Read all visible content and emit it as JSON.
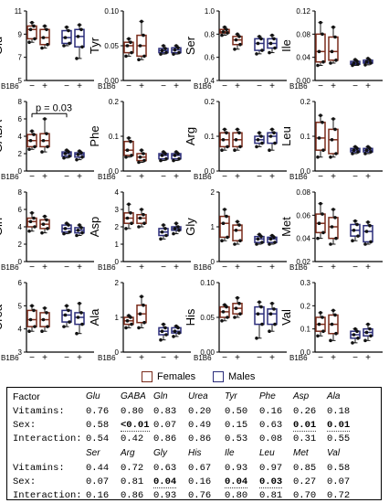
{
  "colors": {
    "females": "#7a2c1c",
    "males": "#2b2d7a",
    "points": "#111111"
  },
  "chart_data": {
    "type": "box",
    "x_row_label": "B1B6",
    "groups": [
      "−",
      "+",
      "−",
      "+"
    ],
    "group_sex": [
      "Females",
      "Females",
      "Males",
      "Males"
    ],
    "panels": [
      {
        "label": "Glu",
        "ylim": [
          5,
          11
        ],
        "ticks": [
          "5",
          "7",
          "9",
          "11"
        ],
        "boxes": [
          [
            8.3,
            8.6,
            9.4,
            9.7,
            10
          ],
          [
            7.8,
            8.1,
            8.7,
            9.4,
            9.7
          ],
          [
            8.0,
            8.2,
            8.7,
            9.3,
            9.6
          ],
          [
            6.9,
            7.9,
            8.8,
            9.4,
            9.8
          ]
        ]
      },
      {
        "label": "Tyr",
        "ylim": [
          0,
          0.1
        ],
        "ticks": [
          "0.00",
          "0.05",
          "0.10"
        ],
        "boxes": [
          [
            0.035,
            0.04,
            0.05,
            0.055,
            0.06
          ],
          [
            0.03,
            0.035,
            0.05,
            0.065,
            0.085
          ],
          [
            0.038,
            0.04,
            0.043,
            0.046,
            0.05
          ],
          [
            0.038,
            0.04,
            0.044,
            0.047,
            0.05
          ]
        ]
      },
      {
        "label": "Ser",
        "ylim": [
          0.4,
          1.0
        ],
        "ticks": [
          "0.4",
          "0.6",
          "0.8",
          "1.0"
        ],
        "boxes": [
          [
            0.79,
            0.81,
            0.82,
            0.84,
            0.86
          ],
          [
            0.67,
            0.71,
            0.75,
            0.78,
            0.8
          ],
          [
            0.63,
            0.66,
            0.72,
            0.76,
            0.78
          ],
          [
            0.64,
            0.68,
            0.72,
            0.76,
            0.79
          ]
        ]
      },
      {
        "label": "Ile",
        "ylim": [
          0,
          0.12
        ],
        "ticks": [
          "0.00",
          "0.04",
          "0.08",
          "0.12"
        ],
        "boxes": [
          [
            0.026,
            0.032,
            0.05,
            0.08,
            0.1
          ],
          [
            0.03,
            0.035,
            0.05,
            0.075,
            0.092
          ],
          [
            0.026,
            0.028,
            0.03,
            0.033,
            0.036
          ],
          [
            0.027,
            0.03,
            0.032,
            0.035,
            0.038
          ]
        ]
      },
      {
        "label": "GABA",
        "ylim": [
          0,
          8
        ],
        "ticks": [
          "0",
          "2",
          "4",
          "6",
          "8"
        ],
        "boxes": [
          [
            2.5,
            2.8,
            3.5,
            4.2,
            4.6
          ],
          [
            2.2,
            2.8,
            3.5,
            4.3,
            6.0
          ],
          [
            1.5,
            1.7,
            2.0,
            2.2,
            2.4
          ],
          [
            1.3,
            1.6,
            1.9,
            2.1,
            2.3
          ]
        ],
        "annotation": "p = 0.03"
      },
      {
        "label": "Phe",
        "ylim": [
          0,
          0.2
        ],
        "ticks": [
          "0.0",
          "0.1",
          "0.2"
        ],
        "boxes": [
          [
            0.04,
            0.045,
            0.06,
            0.085,
            0.095
          ],
          [
            0.025,
            0.03,
            0.04,
            0.05,
            0.06
          ],
          [
            0.03,
            0.035,
            0.045,
            0.05,
            0.055
          ],
          [
            0.03,
            0.035,
            0.045,
            0.05,
            0.055
          ]
        ]
      },
      {
        "label": "Arg",
        "ylim": [
          0,
          0.2
        ],
        "ticks": [
          "0.0",
          "0.1",
          "0.2"
        ],
        "boxes": [
          [
            0.06,
            0.07,
            0.09,
            0.11,
            0.12
          ],
          [
            0.06,
            0.07,
            0.09,
            0.11,
            0.12
          ],
          [
            0.07,
            0.08,
            0.09,
            0.1,
            0.11
          ],
          [
            0.06,
            0.08,
            0.1,
            0.11,
            0.12
          ]
        ]
      },
      {
        "label": "Leu",
        "ylim": [
          0,
          0.2
        ],
        "ticks": [
          "0.0",
          "0.1",
          "0.2"
        ],
        "boxes": [
          [
            0.04,
            0.06,
            0.095,
            0.14,
            0.16
          ],
          [
            0.04,
            0.05,
            0.09,
            0.12,
            0.15
          ],
          [
            0.05,
            0.055,
            0.06,
            0.065,
            0.07
          ],
          [
            0.05,
            0.055,
            0.06,
            0.065,
            0.07
          ]
        ]
      },
      {
        "label": "Gln",
        "ylim": [
          0,
          8
        ],
        "ticks": [
          "0",
          "2",
          "4",
          "6",
          "8"
        ],
        "boxes": [
          [
            3.5,
            4.0,
            4.6,
            5.0,
            5.6
          ],
          [
            3.3,
            3.8,
            4.3,
            4.8,
            5.2
          ],
          [
            3.2,
            3.4,
            3.8,
            4.2,
            4.4
          ],
          [
            3.0,
            3.3,
            3.6,
            3.9,
            4.2
          ]
        ]
      },
      {
        "label": "Asp",
        "ylim": [
          0,
          4
        ],
        "ticks": [
          "0",
          "1",
          "2",
          "3",
          "4"
        ],
        "boxes": [
          [
            1.9,
            2.2,
            2.5,
            2.8,
            3.3
          ],
          [
            2.0,
            2.2,
            2.5,
            2.7,
            3.0
          ],
          [
            1.3,
            1.5,
            1.7,
            1.9,
            2.1
          ],
          [
            1.6,
            1.8,
            1.9,
            2.0,
            2.2
          ]
        ]
      },
      {
        "label": "Gly",
        "ylim": [
          0,
          2
        ],
        "ticks": [
          "0",
          "1",
          "2"
        ],
        "boxes": [
          [
            0.6,
            0.7,
            1.1,
            1.3,
            1.5
          ],
          [
            0.5,
            0.6,
            0.9,
            1.05,
            1.15
          ],
          [
            0.5,
            0.55,
            0.65,
            0.72,
            0.78
          ],
          [
            0.5,
            0.55,
            0.65,
            0.7,
            0.75
          ]
        ]
      },
      {
        "label": "Met",
        "ylim": [
          0.02,
          0.08
        ],
        "ticks": [
          "0.02",
          "0.04",
          "0.06",
          "0.08"
        ],
        "boxes": [
          [
            0.04,
            0.045,
            0.053,
            0.061,
            0.07
          ],
          [
            0.035,
            0.04,
            0.05,
            0.058,
            0.065
          ],
          [
            0.038,
            0.042,
            0.047,
            0.052,
            0.055
          ],
          [
            0.035,
            0.037,
            0.046,
            0.051,
            0.054
          ]
        ]
      },
      {
        "label": "Urea",
        "ylim": [
          3,
          6
        ],
        "ticks": [
          "3",
          "4",
          "5",
          "6"
        ],
        "boxes": [
          [
            3.9,
            4.1,
            4.4,
            4.8,
            5.0
          ],
          [
            3.9,
            4.1,
            4.4,
            4.7,
            4.9
          ],
          [
            4.1,
            4.3,
            4.6,
            4.8,
            5.0
          ],
          [
            3.8,
            4.2,
            4.5,
            4.7,
            5.1
          ]
        ]
      },
      {
        "label": "Ala",
        "ylim": [
          0,
          2
        ],
        "ticks": [
          "0",
          "1",
          "2"
        ],
        "boxes": [
          [
            0.7,
            0.8,
            0.9,
            1.0,
            1.05
          ],
          [
            0.7,
            0.85,
            1.1,
            1.35,
            1.6
          ],
          [
            0.35,
            0.5,
            0.6,
            0.7,
            0.8
          ],
          [
            0.45,
            0.55,
            0.6,
            0.7,
            0.75
          ]
        ]
      },
      {
        "label": "His",
        "ylim": [
          0,
          0.1
        ],
        "ticks": [
          "0.00",
          "0.05",
          "0.10"
        ],
        "boxes": [
          [
            0.045,
            0.05,
            0.058,
            0.065,
            0.068
          ],
          [
            0.05,
            0.055,
            0.063,
            0.07,
            0.078
          ],
          [
            0.02,
            0.04,
            0.055,
            0.065,
            0.072
          ],
          [
            0.03,
            0.04,
            0.055,
            0.062,
            0.07
          ]
        ]
      },
      {
        "label": "Val",
        "ylim": [
          0,
          0.3
        ],
        "ticks": [
          "0.0",
          "0.1",
          "0.2",
          "0.3"
        ],
        "boxes": [
          [
            0.07,
            0.09,
            0.12,
            0.15,
            0.17
          ],
          [
            0.05,
            0.08,
            0.12,
            0.16,
            0.18
          ],
          [
            0.04,
            0.06,
            0.075,
            0.09,
            0.1
          ],
          [
            0.05,
            0.07,
            0.085,
            0.1,
            0.12
          ]
        ]
      }
    ]
  },
  "legend": {
    "females": "Females",
    "males": "Males"
  },
  "stats": {
    "factor_label": "Factor",
    "row_labels": [
      "Vitamins:",
      "Sex:",
      "Interaction:"
    ],
    "blocks": [
      {
        "headers": [
          "Glu",
          "GABA",
          "Gln",
          "Urea",
          "Tyr",
          "Phe",
          "Asp",
          "Ala"
        ],
        "rows": [
          [
            "0.76",
            "0.80",
            "0.83",
            "0.20",
            "0.50",
            "0.16",
            "0.26",
            "0.18"
          ],
          [
            "0.58",
            "<0.01",
            "0.07",
            "0.49",
            "0.15",
            "0.63",
            "0.01",
            "0.01"
          ],
          [
            "0.54",
            "0.42",
            "0.86",
            "0.86",
            "0.53",
            "0.08",
            "0.31",
            "0.55"
          ]
        ]
      },
      {
        "headers": [
          "Ser",
          "Arg",
          "Gly",
          "His",
          "Ile",
          "Leu",
          "Met",
          "Val"
        ],
        "rows": [
          [
            "0.44",
            "0.72",
            "0.63",
            "0.67",
            "0.93",
            "0.97",
            "0.85",
            "0.58"
          ],
          [
            "0.07",
            "0.81",
            "0.04",
            "0.16",
            "0.04",
            "0.03",
            "0.27",
            "0.07"
          ],
          [
            "0.16",
            "0.86",
            "0.93",
            "0.76",
            "0.80",
            "0.81",
            "0.70",
            "0.72"
          ]
        ]
      }
    ]
  }
}
